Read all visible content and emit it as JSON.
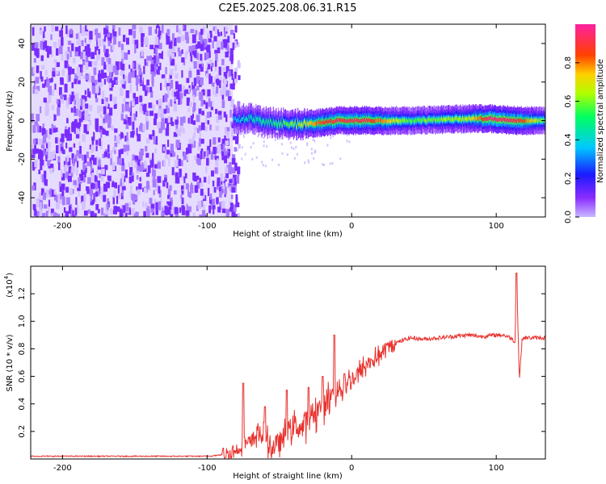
{
  "page": {
    "title": "C2E5.2025.208.06.31.R15"
  },
  "colors": {
    "snr_line": "#e8322e",
    "low_noise": "#7a2cff",
    "frame": "#000000"
  },
  "chart_data": [
    {
      "type": "heatmap",
      "title": "C2E5.2025.208.06.31.R15",
      "xlabel": "Height of straight line (km)",
      "ylabel": "Frequency (Hz)",
      "xlim": [
        -222,
        134
      ],
      "ylim": [
        -50,
        50
      ],
      "xticks": [
        -200,
        -100,
        0,
        100
      ],
      "xtick_labels": [
        "-200",
        "-100",
        "0",
        "100"
      ],
      "yticks": [
        -40,
        -20,
        0,
        20,
        40
      ],
      "ytick_labels": [
        "-40",
        "-20",
        "0",
        "20",
        "40"
      ],
      "colorbar": {
        "label": "Normalized spectral amplitude",
        "range": [
          0,
          1
        ],
        "ticks": [
          0.0,
          0.2,
          0.4,
          0.6,
          0.8
        ],
        "tick_labels": [
          "0.0",
          "0.2",
          "0.4",
          "0.6",
          "0.8"
        ],
        "colormap": "rainbow (violet-blue-cyan-green-yellow-red-magenta)"
      },
      "noise_region_x": [
        -222,
        -82
      ],
      "signal_ridge": {
        "description": "narrow band centred near 0 Hz",
        "points": [
          {
            "x": -82,
            "freq": 1,
            "amp": 0.35
          },
          {
            "x": -70,
            "freq": 1,
            "amp": 0.45
          },
          {
            "x": -60,
            "freq": -1,
            "amp": 0.5
          },
          {
            "x": -40,
            "freq": -2,
            "amp": 0.6
          },
          {
            "x": -20,
            "freq": -1,
            "amp": 0.85
          },
          {
            "x": -10,
            "freq": 0,
            "amp": 0.9
          },
          {
            "x": 10,
            "freq": 0,
            "amp": 0.9
          },
          {
            "x": 40,
            "freq": 0,
            "amp": 0.55
          },
          {
            "x": 80,
            "freq": 1,
            "amp": 0.65
          },
          {
            "x": 95,
            "freq": 1,
            "amp": 0.95
          },
          {
            "x": 115,
            "freq": 0,
            "amp": 0.9
          },
          {
            "x": 134,
            "freq": 0,
            "amp": 0.55
          }
        ]
      },
      "grid": false
    },
    {
      "type": "line",
      "xlabel": "Height of straight line (km)",
      "ylabel": "SNR (10 * v/v)",
      "y_multiplier_label": "(x10",
      "y_multiplier_exp": "4",
      "y_multiplier_close": ")",
      "xlim": [
        -222,
        134
      ],
      "ylim": [
        0,
        1.4
      ],
      "xticks": [
        -200,
        -100,
        0,
        100
      ],
      "xtick_labels": [
        "-200",
        "-100",
        "0",
        "100"
      ],
      "yticks": [
        0.2,
        0.4,
        0.6,
        0.8,
        1.0,
        1.2
      ],
      "ytick_labels": [
        "0.2",
        "0.4",
        "0.6",
        "0.8",
        "1.0",
        "1.2"
      ],
      "series": [
        {
          "color": "#e8322e",
          "x": [
            -222,
            -200,
            -150,
            -100,
            -90,
            -85,
            -80,
            -75,
            -70,
            -65,
            -60,
            -55,
            -50,
            -45,
            -40,
            -35,
            -30,
            -25,
            -20,
            -15,
            -10,
            -5,
            0,
            5,
            10,
            15,
            20,
            25,
            30,
            35,
            40,
            50,
            60,
            70,
            80,
            90,
            100,
            105,
            110,
            113,
            114,
            116,
            118,
            120,
            125,
            134
          ],
          "y": [
            0.02,
            0.02,
            0.02,
            0.02,
            0.03,
            0.04,
            0.06,
            0.12,
            0.1,
            0.2,
            0.15,
            0.08,
            0.12,
            0.18,
            0.25,
            0.22,
            0.3,
            0.35,
            0.38,
            0.45,
            0.5,
            0.52,
            0.58,
            0.62,
            0.68,
            0.72,
            0.76,
            0.8,
            0.84,
            0.86,
            0.88,
            0.87,
            0.88,
            0.89,
            0.9,
            0.89,
            0.9,
            0.9,
            0.88,
            0.85,
            1.35,
            0.58,
            0.88,
            0.88,
            0.88,
            0.88
          ]
        }
      ],
      "spikes": [
        {
          "x": -75,
          "y": 0.55
        },
        {
          "x": -60,
          "y": 0.38
        },
        {
          "x": -45,
          "y": 0.5
        },
        {
          "x": -30,
          "y": 0.52
        },
        {
          "x": -20,
          "y": 0.6
        },
        {
          "x": -12,
          "y": 0.9
        },
        {
          "x": -5,
          "y": 0.62
        },
        {
          "x": 114,
          "y": 1.35
        }
      ],
      "grid": false
    }
  ]
}
